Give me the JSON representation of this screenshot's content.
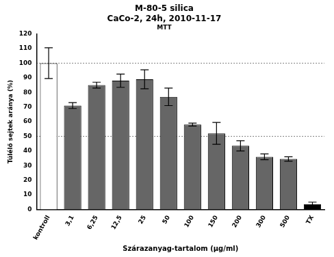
{
  "chart_data": {
    "type": "bar",
    "title": [
      "M-80-5 silica",
      "CaCo-2, 24h, 2010-11-17"
    ],
    "subtitle": "MTT",
    "x_label": "Szárazanyag-tartalom (µg/ml)",
    "y_label": "Túlélő sejtek aránya (%)",
    "categories": [
      "kontroll",
      "3,1",
      "6,25",
      "12,5",
      "25",
      "50",
      "100",
      "150",
      "200",
      "300",
      "500",
      "TX"
    ],
    "values": [
      100,
      71,
      85,
      88,
      89,
      77,
      58,
      52,
      43.5,
      36,
      34.5,
      3.5
    ],
    "errors": [
      10.5,
      2,
      2,
      4.5,
      6.5,
      6,
      1,
      7.5,
      3.5,
      2,
      1.5,
      1.5
    ],
    "colors": [
      "#ffffff",
      "#666666",
      "#666666",
      "#666666",
      "#666666",
      "#666666",
      "#666666",
      "#666666",
      "#666666",
      "#666666",
      "#666666",
      "#000000"
    ],
    "reference_lines": [
      100,
      50
    ],
    "ylim": [
      0,
      120
    ],
    "yticks": [
      0,
      10,
      20,
      30,
      40,
      50,
      60,
      70,
      80,
      90,
      100,
      110,
      120
    ],
    "grid": false
  }
}
